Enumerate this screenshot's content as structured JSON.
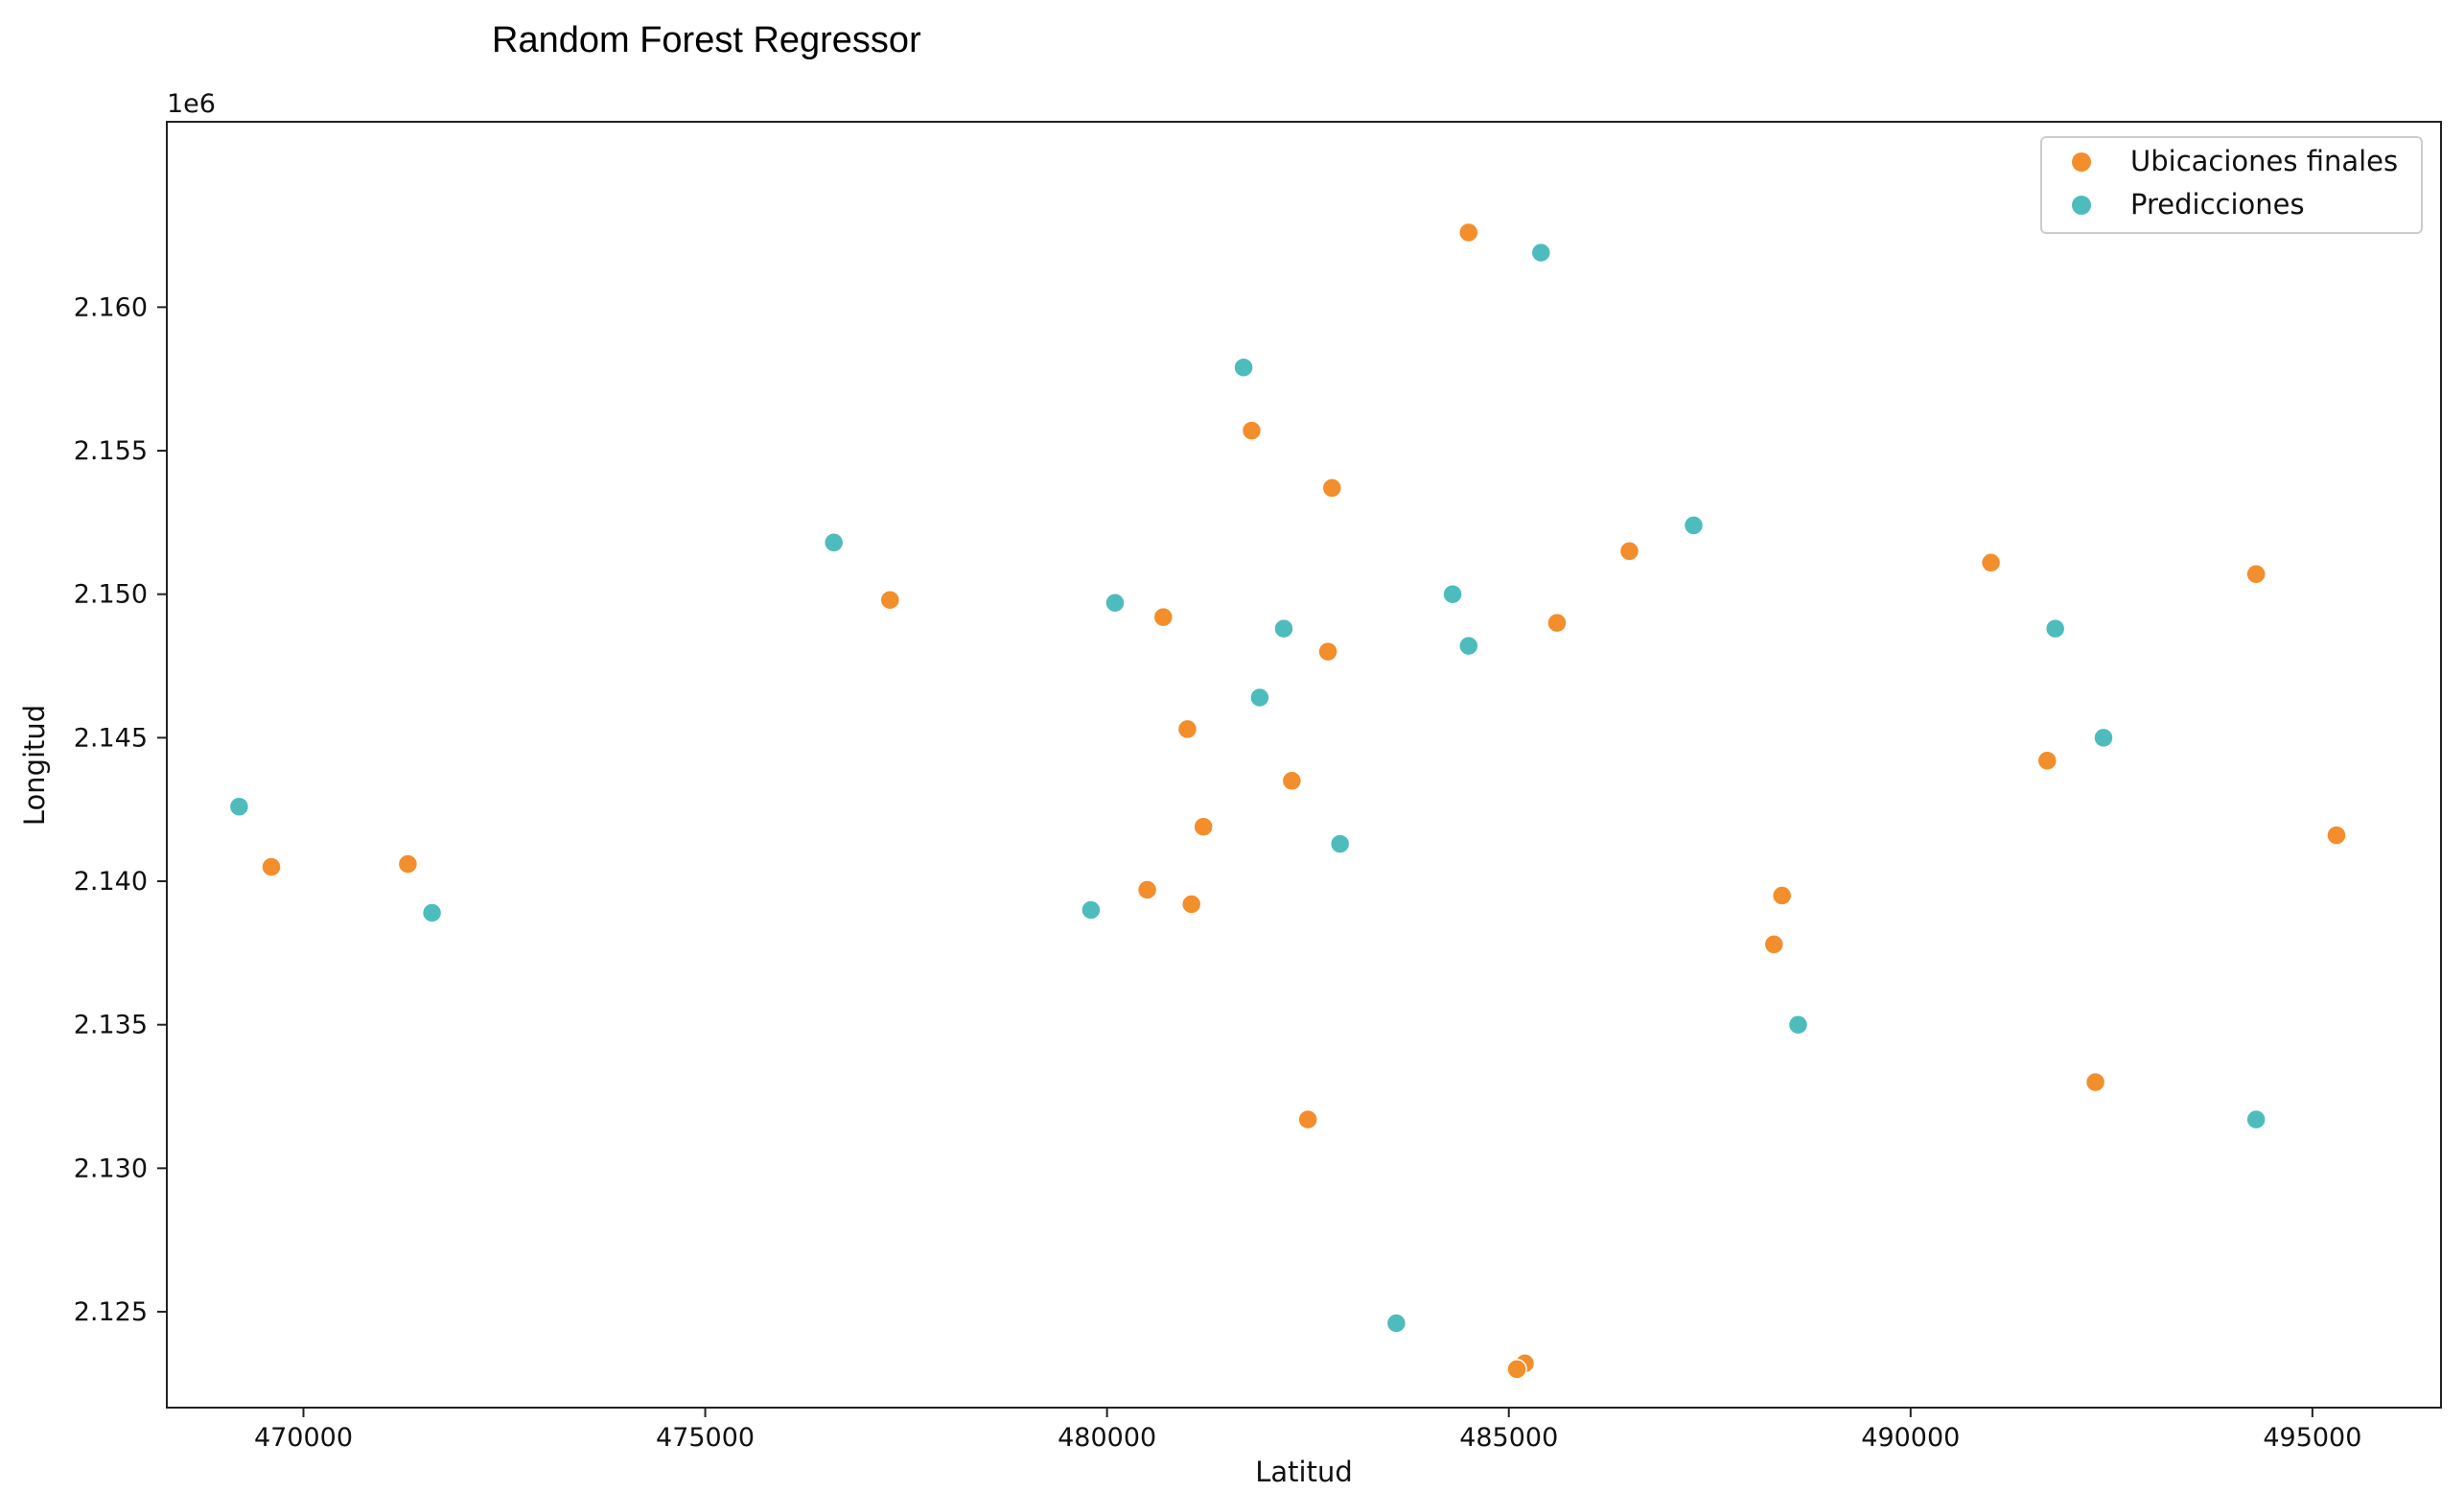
{
  "chart_data": {
    "type": "scatter",
    "title": "Random Forest Regressor",
    "xlabel": "Latitud",
    "ylabel": "Longitud",
    "y_offset_label": "1e6",
    "xlim": [
      468300,
      496600
    ],
    "ylim": [
      2.12166,
      2.16646
    ],
    "xticks": [
      470000,
      475000,
      480000,
      485000,
      490000,
      495000
    ],
    "xtick_labels": [
      "470000",
      "475000",
      "480000",
      "485000",
      "490000",
      "495000"
    ],
    "yticks": [
      2.125,
      2.13,
      2.135,
      2.14,
      2.145,
      2.15,
      2.155,
      2.16
    ],
    "ytick_labels": [
      "2.125",
      "2.130",
      "2.135",
      "2.140",
      "2.145",
      "2.150",
      "2.155",
      "2.160"
    ],
    "grid": false,
    "legend_position": "top-right",
    "series": [
      {
        "name": "Ubicaciones finales",
        "color": "#f28e2b",
        "points": [
          [
            484500,
            2.1626
          ],
          [
            481800,
            2.1557
          ],
          [
            482800,
            2.1537
          ],
          [
            486500,
            2.1515
          ],
          [
            491000,
            2.1511
          ],
          [
            494300,
            2.1507
          ],
          [
            477300,
            2.1498
          ],
          [
            480700,
            2.1492
          ],
          [
            485600,
            2.149
          ],
          [
            482750,
            2.148
          ],
          [
            481000,
            2.1453
          ],
          [
            482300,
            2.1435
          ],
          [
            491700,
            2.1442
          ],
          [
            481200,
            2.1419
          ],
          [
            495300,
            2.1416
          ],
          [
            469600,
            2.1405
          ],
          [
            471300,
            2.1406
          ],
          [
            480500,
            2.1397
          ],
          [
            481050,
            2.1392
          ],
          [
            488400,
            2.1395
          ],
          [
            488300,
            2.1378
          ],
          [
            492300,
            2.133
          ],
          [
            482500,
            2.1317
          ],
          [
            485200,
            2.1232
          ],
          [
            485100,
            2.123
          ]
        ]
      },
      {
        "name": "Predicciones",
        "color": "#4ebcbd",
        "points": [
          [
            485400,
            2.1619
          ],
          [
            481700,
            2.1579
          ],
          [
            487300,
            2.1524
          ],
          [
            476600,
            2.1518
          ],
          [
            480100,
            2.1497
          ],
          [
            484300,
            2.15
          ],
          [
            482200,
            2.1488
          ],
          [
            491800,
            2.1488
          ],
          [
            484500,
            2.1482
          ],
          [
            481900,
            2.1464
          ],
          [
            492400,
            2.145
          ],
          [
            469200,
            2.1426
          ],
          [
            482900,
            2.1413
          ],
          [
            479800,
            2.139
          ],
          [
            471600,
            2.1389
          ],
          [
            488600,
            2.135
          ],
          [
            494300,
            2.1317
          ],
          [
            483600,
            2.1246
          ]
        ]
      }
    ]
  }
}
